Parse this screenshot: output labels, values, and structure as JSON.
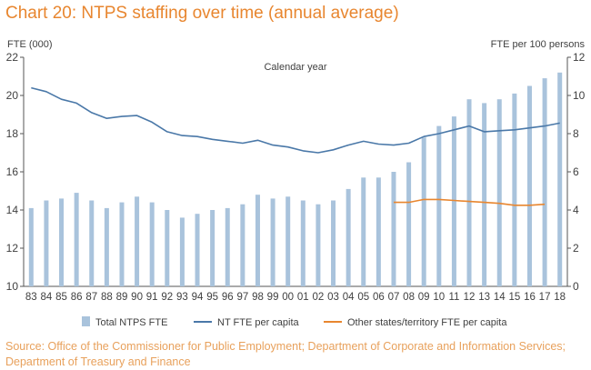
{
  "title": "Chart 20: NTPS staffing over time (annual average)",
  "source": "Source: Office of the Commissioner for Public Employment; Department of Corporate and Information Services; Department of Treasury and Finance",
  "chart_data": {
    "type": "bar",
    "title": "Chart 20: NTPS staffing over time (annual average)",
    "xlabel": "Calendar year",
    "ylabel": "FTE (000)",
    "y2label": "FTE per 100 persons",
    "ylim": [
      10,
      22
    ],
    "yticks": [
      10,
      12,
      14,
      16,
      18,
      20,
      22
    ],
    "y2lim": [
      0,
      12
    ],
    "y2ticks": [
      0,
      2,
      4,
      6,
      8,
      10,
      12
    ],
    "grid": false,
    "legend_position": "bottom",
    "categories": [
      "83",
      "84",
      "85",
      "86",
      "87",
      "88",
      "89",
      "90",
      "91",
      "92",
      "93",
      "94",
      "95",
      "96",
      "97",
      "98",
      "99",
      "00",
      "01",
      "02",
      "03",
      "04",
      "05",
      "06",
      "07",
      "08",
      "09",
      "10",
      "11",
      "12",
      "13",
      "14",
      "15",
      "16",
      "17",
      "18"
    ],
    "series": [
      {
        "name": "Total NTPS FTE",
        "type": "bar",
        "axis": "left",
        "color": "#a9c3dc",
        "values": [
          14.1,
          14.5,
          14.6,
          14.9,
          14.5,
          14.1,
          14.4,
          14.7,
          14.4,
          14.0,
          13.6,
          13.8,
          14.0,
          14.1,
          14.3,
          14.8,
          14.6,
          14.7,
          14.5,
          14.3,
          14.5,
          15.1,
          15.7,
          15.7,
          16.0,
          16.5,
          17.8,
          18.4,
          18.9,
          19.8,
          19.6,
          19.8,
          20.1,
          20.5,
          20.9,
          21.2
        ]
      },
      {
        "name": "NT FTE per capita",
        "type": "line",
        "axis": "right",
        "color": "#4a78a8",
        "values": [
          10.4,
          10.2,
          9.8,
          9.6,
          9.1,
          8.8,
          8.9,
          8.95,
          8.6,
          8.1,
          7.9,
          7.85,
          7.7,
          7.6,
          7.5,
          7.65,
          7.4,
          7.3,
          7.1,
          7.0,
          7.15,
          7.4,
          7.6,
          7.45,
          7.4,
          7.5,
          7.85,
          8.0,
          8.2,
          8.4,
          8.1,
          8.15,
          8.2,
          8.3,
          8.4,
          8.55
        ]
      },
      {
        "name": "Other states/territory FTE per capita",
        "type": "line",
        "axis": "right",
        "color": "#e8862f",
        "values": [
          null,
          null,
          null,
          null,
          null,
          null,
          null,
          null,
          null,
          null,
          null,
          null,
          null,
          null,
          null,
          null,
          null,
          null,
          null,
          null,
          null,
          null,
          null,
          null,
          4.4,
          4.4,
          4.55,
          4.55,
          4.5,
          4.45,
          4.4,
          4.35,
          4.25,
          4.25,
          4.3,
          null
        ]
      }
    ]
  }
}
